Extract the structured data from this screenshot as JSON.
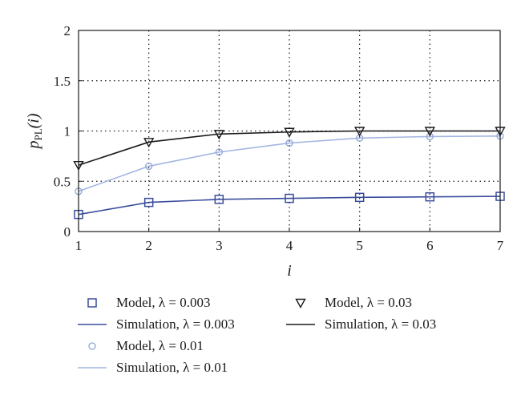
{
  "chart_data": {
    "type": "line",
    "xlabel": "i",
    "ylabel_main": "p",
    "ylabel_sub": "PL",
    "ylabel_arg": "(i)",
    "xlim": [
      1,
      7
    ],
    "ylim": [
      0,
      2
    ],
    "x_ticks": [
      "1",
      "2",
      "3",
      "4",
      "5",
      "6",
      "7"
    ],
    "y_ticks": [
      "0",
      "0.5",
      "1",
      "1.5",
      "2"
    ],
    "grid": true,
    "legend_position": "bottom",
    "x": [
      1,
      2,
      3,
      4,
      5,
      6,
      7
    ],
    "series": [
      {
        "name": "Model, λ = 0.003",
        "kind": "marker",
        "marker": "square",
        "color": "#3a4d9c",
        "values": [
          0.17,
          0.29,
          0.32,
          0.33,
          0.34,
          0.345,
          0.35
        ]
      },
      {
        "name": "Simulation, λ = 0.003",
        "kind": "line",
        "color": "#3a4d9c",
        "values": [
          0.17,
          0.29,
          0.32,
          0.33,
          0.34,
          0.345,
          0.35
        ]
      },
      {
        "name": "Model, λ = 0.01",
        "kind": "marker",
        "marker": "circle",
        "color": "#8fa5d8",
        "values": [
          0.4,
          0.65,
          0.79,
          0.88,
          0.93,
          0.945,
          0.95
        ]
      },
      {
        "name": "Simulation, λ = 0.01",
        "kind": "line",
        "color": "#a3b5e2",
        "values": [
          0.4,
          0.65,
          0.79,
          0.88,
          0.93,
          0.945,
          0.95
        ]
      },
      {
        "name": "Model, λ = 0.03",
        "kind": "marker",
        "marker": "triangle-down",
        "color": "#1a1a1a",
        "values": [
          0.66,
          0.89,
          0.97,
          0.99,
          1.0,
          1.0,
          1.0
        ]
      },
      {
        "name": "Simulation, λ = 0.03",
        "kind": "line",
        "color": "#1a1a1a",
        "values": [
          0.66,
          0.89,
          0.97,
          0.99,
          1.0,
          1.0,
          1.0
        ]
      }
    ]
  }
}
